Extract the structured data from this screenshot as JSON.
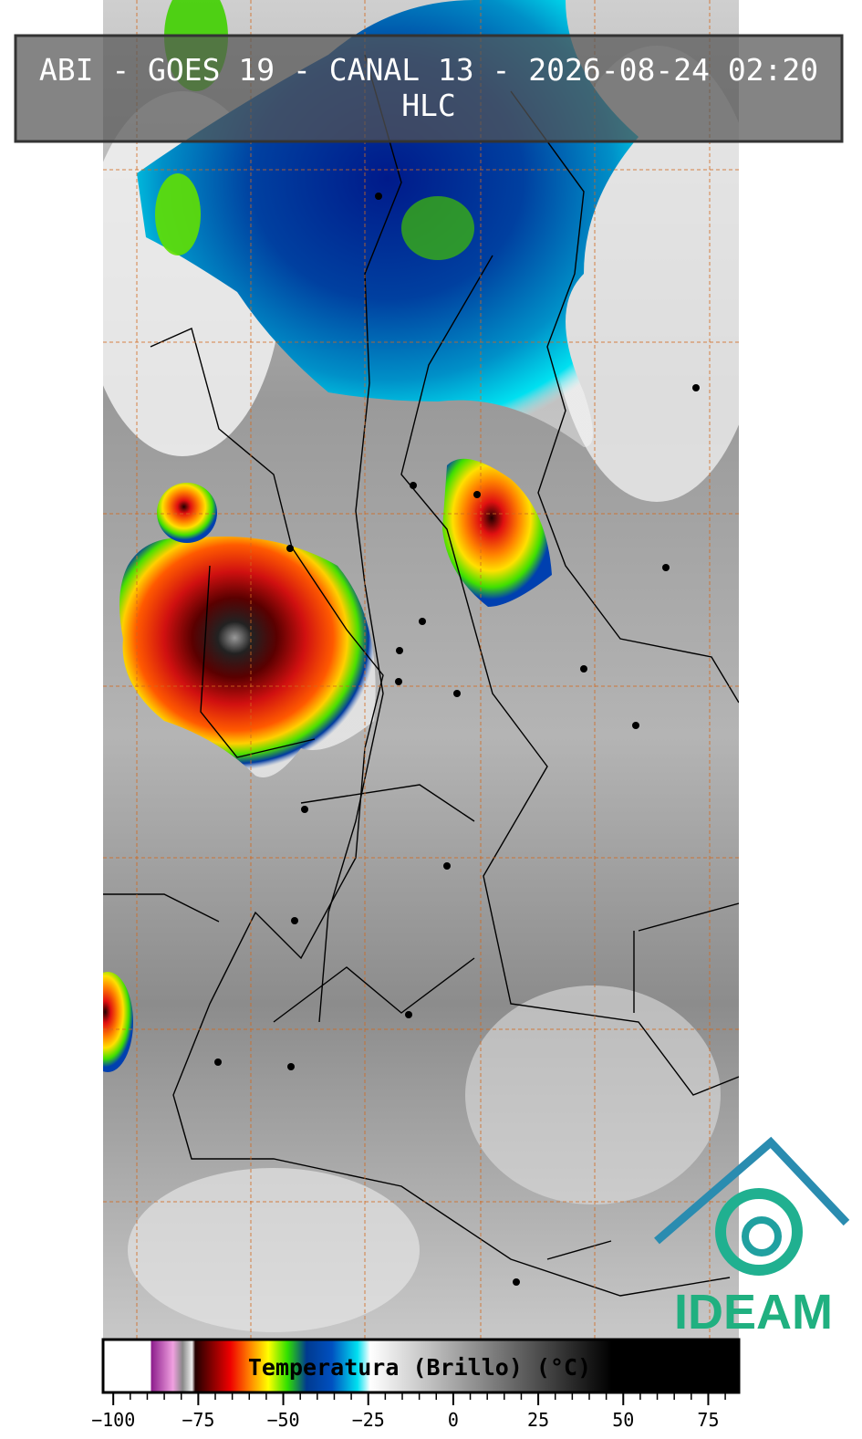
{
  "header": {
    "title": "ABI - GOES 19 - CANAL 13 - 2026-08-24 02:20",
    "subtitle": "HLC"
  },
  "colorbar": {
    "label": "Temperatura (Brillo) (°C)",
    "lim": [
      -103,
      84
    ],
    "ticks": [
      {
        "value": -100,
        "label": "−100"
      },
      {
        "value": -75,
        "label": "−75"
      },
      {
        "value": -50,
        "label": "−50"
      },
      {
        "value": -25,
        "label": "−25"
      },
      0,
      25,
      50,
      75
    ],
    "minor_step": 5
  },
  "logo": {
    "text": "IDEAM"
  }
}
